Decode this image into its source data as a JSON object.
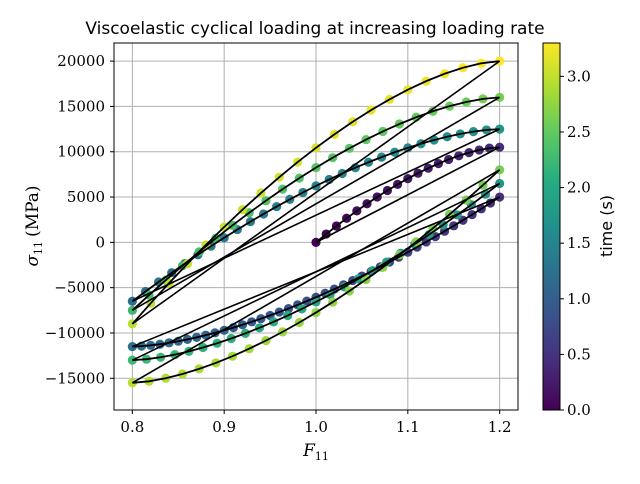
{
  "chart_data": {
    "type": "scatter",
    "title": "Viscoelastic cyclical loading at increasing loading rate",
    "xlabel": "F",
    "xlabel_sub": "11",
    "ylabel": "σ",
    "ylabel_sub": "11",
    "ylabel_unit": "(MPa)",
    "xlim": [
      0.78,
      1.22
    ],
    "ylim": [
      -18500,
      22000
    ],
    "xticks": [
      0.8,
      0.9,
      1.0,
      1.1,
      1.2
    ],
    "xtick_labels": [
      "0.8",
      "0.9",
      "1.0",
      "1.1",
      "1.2"
    ],
    "yticks": [
      -15000,
      -10000,
      -5000,
      0,
      5000,
      10000,
      15000,
      20000
    ],
    "ytick_labels": [
      "−15000",
      "−10000",
      "−5000",
      "0",
      "5000",
      "10000",
      "15000",
      "20000"
    ],
    "grid": true,
    "colorbar": {
      "label": "time (s)",
      "colormap": "viridis",
      "range": [
        0,
        3.3
      ],
      "ticks": [
        0.0,
        0.5,
        1.0,
        1.5,
        2.0,
        2.5,
        3.0
      ],
      "tick_labels": [
        "0.0",
        "0.5",
        "1.0",
        "1.5",
        "2.0",
        "2.5",
        "3.0"
      ]
    },
    "model_line_color": "#000000",
    "loading": {
      "strain_amplitude": 0.2,
      "n_segments": 7,
      "segment_end_times": [
        0.42,
        1.2,
        1.72,
        2.24,
        2.6,
        2.96,
        3.3
      ],
      "segment_peak_stress": [
        10500,
        -11500,
        12500,
        -13000,
        16000,
        -15500,
        20000
      ],
      "segment_start_stress": [
        0,
        5000,
        -6500,
        6500,
        -7500,
        8000,
        -9000
      ],
      "points_per_segment": [
        18,
        40,
        28,
        26,
        22,
        22,
        20
      ]
    }
  }
}
